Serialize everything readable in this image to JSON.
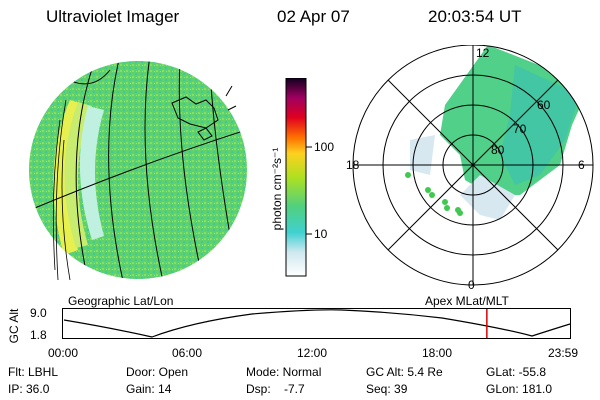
{
  "header": {
    "title": "Ultraviolet Imager",
    "date": "02 Apr 07",
    "time": "20:03:54 UT"
  },
  "colorbar": {
    "unit_label": "photon cm⁻²s⁻¹",
    "ticks": [
      "100",
      "10"
    ]
  },
  "polar_plot": {
    "mlt_labels": [
      "12",
      "18",
      "6",
      "0"
    ],
    "lat_labels": [
      "60",
      "70",
      "80"
    ]
  },
  "captions": {
    "left": "Geographic Lat/Lon",
    "right": "Apex  MLat/MLT"
  },
  "altitude_plot": {
    "axis_label": "GC Alt",
    "y_max": "9.0",
    "y_min": "1.8",
    "time_ticks": [
      "00:00",
      "06:00",
      "12:00",
      "18:00",
      "23:59"
    ],
    "current_time_marker_fraction": 0.836
  },
  "footer": {
    "row1": [
      "Flt: LBHL",
      "Door: Open",
      "Mode: Normal",
      "GC Alt: 5.4 Re",
      "GLat: -55.8"
    ],
    "row2": [
      "IP: 36.0",
      "Gain: 14",
      "Dsp:    -7.7",
      "Seq: 39",
      "GLon: 181.0"
    ]
  },
  "colors": {
    "marker": "#dd0000",
    "aurora": "#40c890"
  }
}
